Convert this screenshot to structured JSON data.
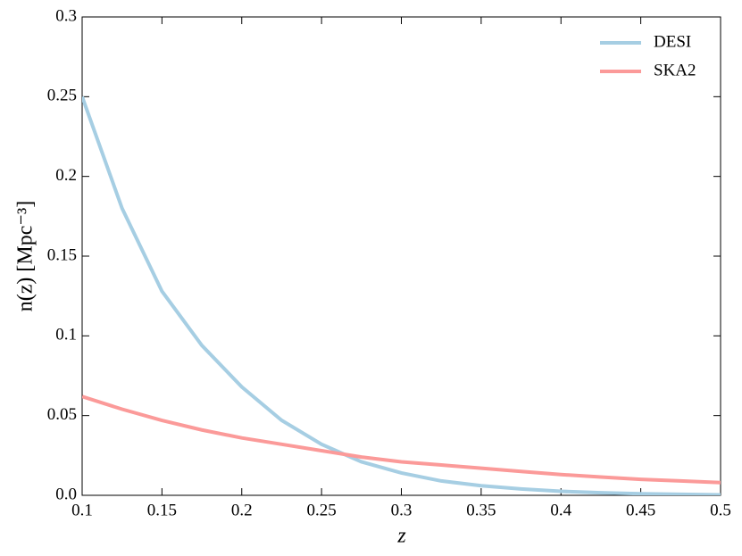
{
  "chart_data": {
    "type": "line",
    "xlabel": "z",
    "ylabel": "n(z) [Mpc⁻³]",
    "x": [
      0.1,
      0.125,
      0.15,
      0.175,
      0.2,
      0.225,
      0.25,
      0.275,
      0.3,
      0.325,
      0.35,
      0.375,
      0.4,
      0.425,
      0.45,
      0.475,
      0.5
    ],
    "series": [
      {
        "name": "DESI",
        "color": "#a6cee3",
        "values": [
          0.25,
          0.18,
          0.128,
          0.094,
          0.068,
          0.047,
          0.032,
          0.021,
          0.014,
          0.009,
          0.006,
          0.004,
          0.0025,
          0.0016,
          0.001,
          0.0006,
          0.0003
        ]
      },
      {
        "name": "SKA2",
        "color": "#fb9a99",
        "values": [
          0.062,
          0.054,
          0.047,
          0.041,
          0.036,
          0.032,
          0.028,
          0.024,
          0.021,
          0.019,
          0.017,
          0.015,
          0.013,
          0.0115,
          0.01,
          0.009,
          0.008
        ]
      }
    ],
    "xlim": [
      0.1,
      0.5
    ],
    "xticks": [
      0.1,
      0.15,
      0.2,
      0.25,
      0.3,
      0.35,
      0.4,
      0.45,
      0.5
    ],
    "ylim": [
      0,
      0.3
    ],
    "yticks": [
      {
        "value": 0,
        "label": "0.0"
      },
      0.05,
      0.1,
      0.15,
      0.2,
      0.25,
      0.3
    ],
    "legend": "upper right",
    "grid": false
  }
}
